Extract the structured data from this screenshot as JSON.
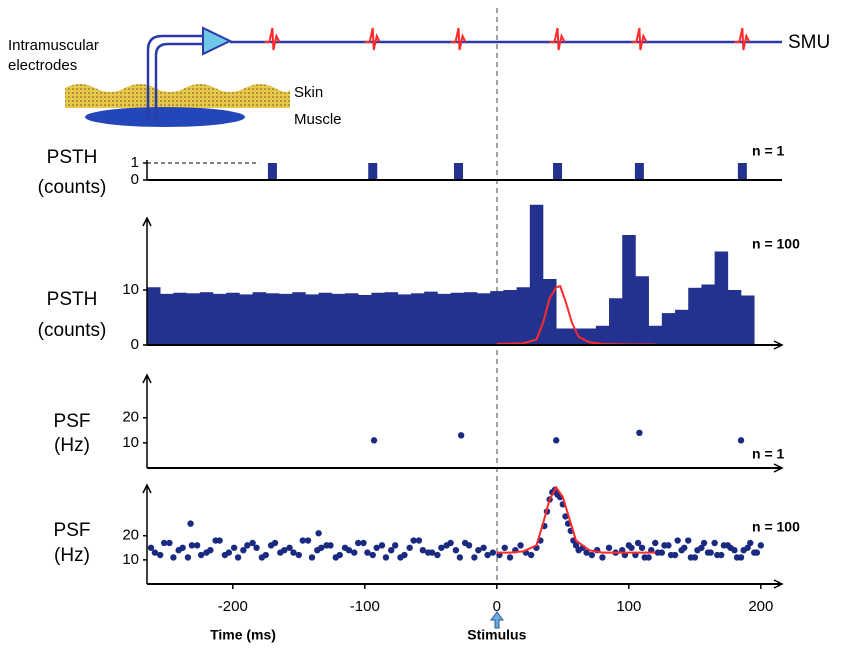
{
  "diagram": {
    "electrode_label": [
      "Intramuscular",
      "electrodes"
    ],
    "skin": "Skin",
    "muscle": "Muscle",
    "unit": "SMU"
  },
  "chart_data": [
    {
      "type": "bar",
      "ylabel": [
        "PSTH",
        "(counts)"
      ],
      "annotation": "n = 1",
      "color": "#23318f",
      "x": [
        -170,
        -94,
        -29,
        46,
        108,
        186
      ],
      "values": [
        1,
        1,
        1,
        1,
        1,
        1
      ],
      "xlim": [
        -265,
        213
      ],
      "ylim": [
        0,
        1
      ],
      "yticks": [
        0,
        1
      ]
    },
    {
      "type": "histogram",
      "ylabel": [
        "PSTH",
        "(counts)"
      ],
      "annotation": "n = 100",
      "color": "#23318f",
      "bins": [
        -265,
        -255,
        -245,
        -235,
        -225,
        -215,
        -205,
        -195,
        -185,
        -175,
        -165,
        -155,
        -145,
        -135,
        -125,
        -115,
        -105,
        -95,
        -85,
        -75,
        -65,
        -55,
        -45,
        -35,
        -25,
        -15,
        -5,
        5,
        15,
        25,
        35,
        45,
        55,
        65,
        75,
        85,
        95,
        105,
        115,
        125,
        135,
        145,
        155,
        165,
        175,
        185,
        195
      ],
      "values": [
        10.5,
        9.3,
        9.5,
        9.4,
        9.6,
        9.3,
        9.5,
        9.2,
        9.6,
        9.4,
        9.3,
        9.6,
        9.2,
        9.5,
        9.3,
        9.4,
        9.1,
        9.5,
        9.6,
        9.2,
        9.4,
        9.7,
        9.3,
        9.5,
        9.6,
        9.4,
        9.8,
        10,
        10.5,
        25.5,
        12,
        3,
        3,
        3,
        3.5,
        8.5,
        20,
        12.5,
        3.5,
        5.8,
        6.4,
        10.4,
        11,
        17,
        10,
        9
      ],
      "fit": {
        "color": "#ff2a2a",
        "x": [
          0,
          20,
          30,
          35,
          40,
          45,
          48,
          52,
          57,
          62,
          70,
          80,
          100,
          120
        ],
        "values": [
          0.2,
          0.3,
          1,
          4,
          8.5,
          10.5,
          10.7,
          8,
          4,
          1.5,
          0.5,
          0.2,
          0.1,
          0.1
        ]
      },
      "xlim": [
        -265,
        213
      ],
      "ylim": [
        0,
        26
      ],
      "yticks": [
        0,
        10
      ]
    },
    {
      "type": "scatter",
      "ylabel": [
        "PSF",
        "(Hz)"
      ],
      "annotation": "n = 1",
      "color": "#1a2a80",
      "x": [
        -93,
        -27,
        45,
        108,
        185
      ],
      "values": [
        11,
        13,
        11,
        14,
        11
      ],
      "xlim": [
        -265,
        213
      ],
      "ylim": [
        0,
        37
      ],
      "yticks": [
        10,
        20
      ]
    },
    {
      "type": "scatter",
      "ylabel": [
        "PSF",
        "(Hz)"
      ],
      "annotation": "n = 100",
      "color": "#1a2a80",
      "x": [
        -262,
        -255,
        -248,
        -241,
        -234,
        -227,
        -220,
        -213,
        -206,
        -199,
        -192,
        -185,
        -178,
        -171,
        -164,
        -157,
        -150,
        -143,
        -136,
        -129,
        -122,
        -115,
        -108,
        -101,
        -94,
        -87,
        -80,
        -73,
        -66,
        -59,
        -52,
        -45,
        -38,
        -31,
        -24,
        -17,
        -10,
        -3,
        -259,
        -252,
        -245,
        -238,
        -231,
        -224,
        -217,
        -210,
        -203,
        -196,
        -189,
        -182,
        -175,
        -168,
        -161,
        -154,
        -147,
        -140,
        -133,
        -126,
        -119,
        -112,
        -105,
        -98,
        -91,
        -84,
        -77,
        -70,
        -63,
        -56,
        -49,
        -42,
        -35,
        -28,
        -21,
        -14,
        -7,
        -232,
        -135,
        2,
        6,
        10,
        14,
        18,
        22,
        26,
        30,
        33,
        36,
        38,
        40,
        42,
        44,
        46,
        48,
        50,
        52,
        54,
        56,
        58,
        60,
        62,
        65,
        68,
        72,
        76,
        80,
        85,
        90,
        95,
        100,
        105,
        110,
        115,
        120,
        125,
        130,
        135,
        140,
        145,
        150,
        155,
        160,
        165,
        170,
        175,
        180,
        185,
        190,
        195,
        200,
        97,
        102,
        107,
        112,
        117,
        122,
        127,
        132,
        137,
        142,
        147,
        152,
        157,
        162,
        167,
        172,
        177,
        182,
        187,
        192,
        197
      ],
      "values": [
        15,
        12,
        17,
        14,
        11,
        16,
        13,
        18,
        12,
        15,
        14,
        17,
        11,
        16,
        13,
        15,
        12,
        18,
        14,
        16,
        11,
        15,
        13,
        17,
        12,
        16,
        14,
        11,
        15,
        18,
        13,
        12,
        16,
        14,
        17,
        11,
        15,
        13,
        13,
        17,
        11,
        15,
        16,
        12,
        14,
        18,
        13,
        11,
        16,
        15,
        12,
        17,
        14,
        13,
        18,
        11,
        15,
        16,
        12,
        14,
        17,
        13,
        15,
        11,
        16,
        12,
        18,
        14,
        13,
        15,
        17,
        11,
        16,
        14,
        12,
        25,
        21,
        12,
        15,
        11,
        14,
        16,
        13,
        12,
        15,
        18,
        24,
        30,
        35,
        38,
        39,
        37,
        36,
        33,
        28,
        25,
        22,
        18,
        16,
        14,
        15,
        13,
        12,
        14,
        11,
        15,
        13,
        14,
        16,
        12,
        15,
        11,
        17,
        13,
        16,
        12,
        14,
        18,
        11,
        15,
        13,
        17,
        12,
        16,
        14,
        11,
        15,
        13,
        16,
        12,
        15,
        17,
        11,
        14,
        13,
        16,
        12,
        18,
        15,
        11,
        14,
        17,
        13,
        12,
        16,
        15,
        11,
        14,
        17,
        13
      ],
      "fit": {
        "color": "#ff2a2a",
        "x": [
          0,
          10,
          20,
          30,
          35,
          40,
          45,
          50,
          55,
          60,
          70,
          80,
          90,
          100,
          110,
          120
        ],
        "values": [
          13,
          13,
          13.5,
          16,
          25,
          35,
          40,
          36,
          27,
          18,
          14,
          13,
          13,
          13,
          13,
          13
        ]
      },
      "xlim": [
        -265,
        213
      ],
      "ylim": [
        0,
        41
      ],
      "yticks": [
        10,
        20
      ],
      "xticks": [
        -200,
        -100,
        0,
        100,
        200
      ],
      "xlabel": "Time (ms)",
      "stimulus_label": "Stimulus"
    }
  ]
}
